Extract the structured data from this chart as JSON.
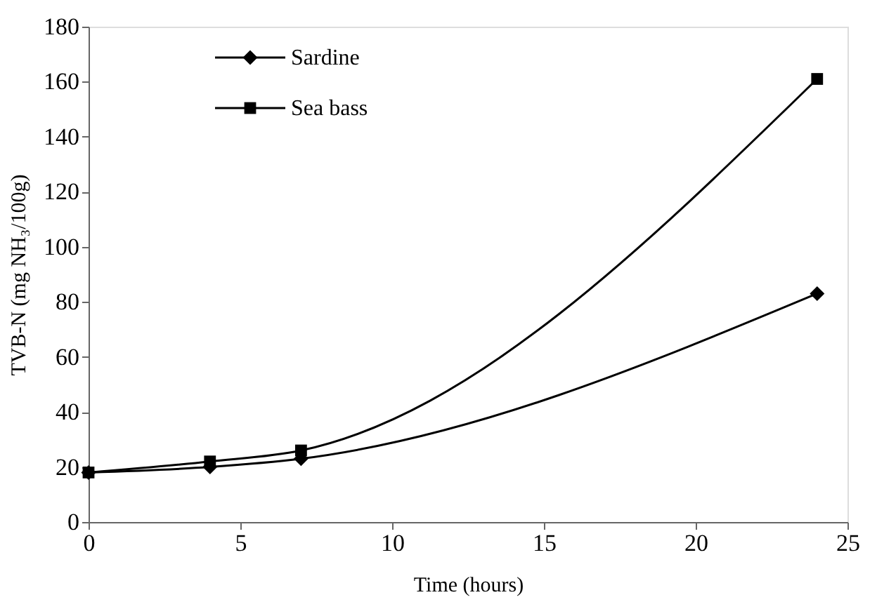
{
  "chart_data": {
    "type": "line",
    "xlabel": "Time (hours)",
    "ylabel": "TVB-N (mg NH₃/100g)",
    "x": [
      0,
      4,
      7,
      24
    ],
    "series": [
      {
        "name": "Sardine",
        "color": "#000000",
        "marker": "diamond",
        "values": [
          18,
          20,
          23,
          83
        ]
      },
      {
        "name": "Sea bass",
        "color": "#000000",
        "marker": "square",
        "values": [
          18,
          22,
          26,
          161
        ]
      }
    ],
    "xlim": [
      0,
      25
    ],
    "xticks": [
      0,
      5,
      10,
      15,
      20,
      25
    ],
    "ylim": [
      0,
      180
    ],
    "yticks": [
      0,
      20,
      40,
      60,
      80,
      100,
      120,
      140,
      160,
      180
    ],
    "grid": false,
    "legend": "top left",
    "line_style": "solid"
  }
}
